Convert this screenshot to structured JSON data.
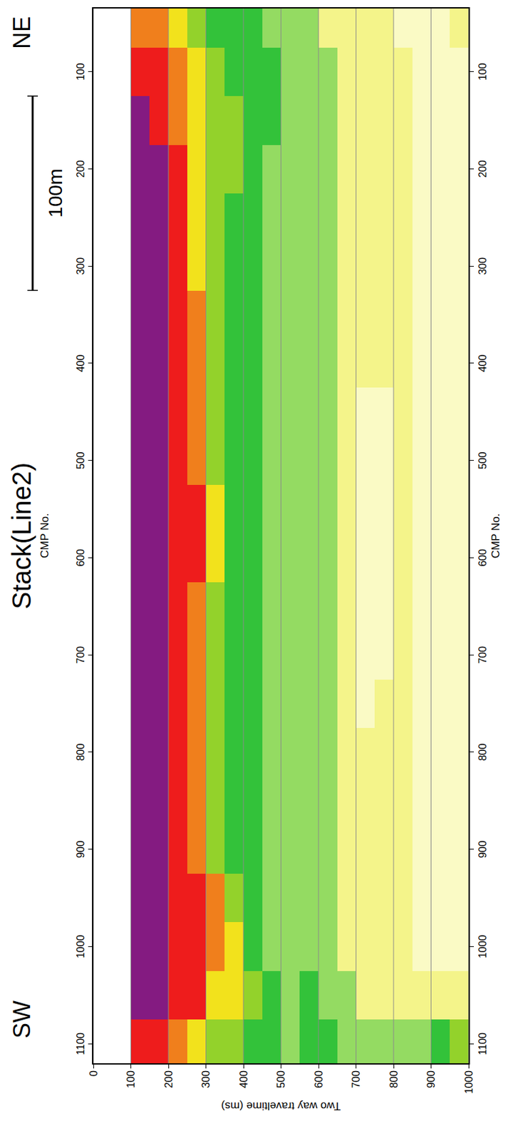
{
  "chart_data": {
    "type": "heatmap",
    "title": "Stack(Line2)",
    "subtitle": "CMP No.",
    "xlabel": "CMP No.",
    "ylabel": "Two way traveltime (ms)",
    "x": [
      50,
      100,
      150,
      200,
      250,
      300,
      350,
      400,
      450,
      500,
      550,
      600,
      650,
      700,
      750,
      800,
      850,
      900,
      950,
      1000,
      1050,
      1100
    ],
    "y": [
      25,
      75,
      125,
      175,
      225,
      275,
      325,
      375,
      425,
      475,
      525,
      575,
      625,
      675,
      725,
      775,
      825,
      875,
      925,
      975
    ],
    "cells": [
      [
        0,
        0,
        0,
        0,
        0,
        0,
        0,
        0,
        0,
        0,
        0,
        0,
        0,
        0,
        0,
        0,
        0,
        0,
        0,
        0,
        0,
        0
      ],
      [
        0,
        0,
        0,
        0,
        0,
        0,
        0,
        0,
        0,
        0,
        0,
        0,
        0,
        0,
        0,
        0,
        0,
        0,
        0,
        0,
        0,
        0
      ],
      [
        7,
        8,
        9,
        9,
        9,
        9,
        9,
        9,
        9,
        9,
        9,
        9,
        9,
        9,
        9,
        9,
        9,
        9,
        9,
        9,
        9,
        8
      ],
      [
        7,
        8,
        8,
        9,
        9,
        9,
        9,
        9,
        9,
        9,
        9,
        9,
        9,
        9,
        9,
        9,
        9,
        9,
        9,
        9,
        9,
        8
      ],
      [
        6,
        7,
        7,
        8,
        8,
        8,
        8,
        8,
        8,
        8,
        8,
        8,
        8,
        8,
        8,
        8,
        8,
        8,
        8,
        8,
        8,
        7
      ],
      [
        5,
        6,
        6,
        6,
        6,
        6,
        7,
        7,
        7,
        7,
        8,
        8,
        7,
        7,
        7,
        7,
        7,
        7,
        8,
        8,
        8,
        6
      ],
      [
        4,
        5,
        5,
        5,
        5,
        5,
        5,
        5,
        5,
        5,
        6,
        6,
        5,
        5,
        5,
        5,
        5,
        5,
        7,
        7,
        6,
        5
      ],
      [
        4,
        4,
        5,
        5,
        4,
        4,
        4,
        4,
        4,
        4,
        4,
        4,
        4,
        4,
        4,
        4,
        4,
        4,
        5,
        6,
        6,
        5
      ],
      [
        4,
        4,
        4,
        4,
        4,
        4,
        4,
        4,
        4,
        4,
        4,
        4,
        4,
        4,
        4,
        4,
        4,
        4,
        4,
        4,
        5,
        4
      ],
      [
        3,
        4,
        4,
        3,
        3,
        3,
        3,
        3,
        3,
        3,
        3,
        3,
        3,
        3,
        3,
        3,
        3,
        3,
        3,
        3,
        4,
        4
      ],
      [
        3,
        3,
        3,
        3,
        3,
        3,
        3,
        3,
        3,
        3,
        3,
        3,
        3,
        3,
        3,
        3,
        3,
        3,
        3,
        3,
        3,
        3
      ],
      [
        3,
        3,
        3,
        3,
        3,
        3,
        3,
        3,
        3,
        3,
        3,
        3,
        3,
        3,
        3,
        3,
        3,
        3,
        3,
        3,
        4,
        4
      ],
      [
        2,
        3,
        3,
        3,
        3,
        3,
        3,
        3,
        3,
        3,
        3,
        3,
        3,
        3,
        3,
        3,
        3,
        3,
        3,
        3,
        3,
        4
      ],
      [
        2,
        2,
        2,
        2,
        2,
        2,
        2,
        2,
        2,
        2,
        2,
        2,
        2,
        2,
        2,
        2,
        2,
        2,
        2,
        2,
        3,
        3
      ],
      [
        2,
        2,
        2,
        2,
        2,
        2,
        2,
        2,
        1,
        1,
        1,
        1,
        1,
        1,
        1,
        2,
        2,
        2,
        2,
        2,
        2,
        3
      ],
      [
        2,
        2,
        2,
        2,
        2,
        2,
        2,
        2,
        1,
        1,
        1,
        1,
        1,
        1,
        2,
        2,
        2,
        2,
        2,
        2,
        2,
        3
      ],
      [
        1,
        2,
        2,
        2,
        2,
        2,
        2,
        2,
        2,
        2,
        2,
        2,
        2,
        2,
        2,
        2,
        2,
        2,
        2,
        2,
        2,
        3
      ],
      [
        1,
        1,
        1,
        1,
        1,
        1,
        1,
        1,
        1,
        1,
        1,
        1,
        1,
        1,
        1,
        1,
        1,
        1,
        1,
        1,
        2,
        3
      ],
      [
        1,
        1,
        1,
        1,
        1,
        1,
        1,
        1,
        1,
        1,
        1,
        1,
        1,
        1,
        1,
        1,
        1,
        1,
        1,
        1,
        2,
        4
      ],
      [
        2,
        1,
        1,
        1,
        1,
        1,
        1,
        1,
        1,
        1,
        1,
        1,
        1,
        1,
        1,
        1,
        1,
        1,
        1,
        1,
        2,
        5
      ]
    ],
    "zlim": [
      0,
      10
    ],
    "colors": [
      "#ffffff",
      "#f4f48a",
      "#33c23a",
      "#f2e21c",
      "#ee1c1c",
      "#1a1ae6"
    ],
    "xlim": [
      1120,
      35
    ],
    "xticks": [
      100,
      200,
      300,
      400,
      500,
      600,
      700,
      800,
      900,
      1000,
      1100
    ],
    "ylim": [
      1000,
      0
    ],
    "yticks": [
      0,
      100,
      200,
      300,
      400,
      500,
      600,
      700,
      800,
      900,
      1000
    ],
    "grid": true,
    "annotations": [
      {
        "text": "SW",
        "x": 1075
      },
      {
        "text": "NE",
        "x": 60
      }
    ],
    "scale_bar": {
      "label": "100m",
      "x": [
        125,
        325
      ]
    }
  }
}
